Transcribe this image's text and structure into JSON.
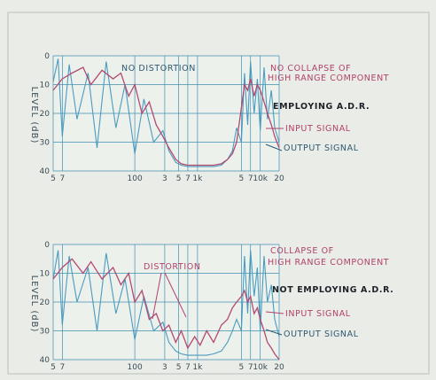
{
  "chart_data": [
    {
      "type": "line",
      "x_scale": "log",
      "xlim": [
        5,
        20000
      ],
      "ylim": [
        40,
        0
      ],
      "y_ticks": [
        0,
        10,
        20,
        30,
        40
      ],
      "x_ticks": [
        {
          "x": 5,
          "label": "5"
        },
        {
          "x": 7,
          "label": "7"
        },
        {
          "x": 100,
          "label": "100"
        },
        {
          "x": 300,
          "label": "3"
        },
        {
          "x": 500,
          "label": "5"
        },
        {
          "x": 700,
          "label": "7"
        },
        {
          "x": 1000,
          "label": "1k"
        },
        {
          "x": 5000,
          "label": "5"
        },
        {
          "x": 7000,
          "label": "7"
        },
        {
          "x": 10000,
          "label": "10k"
        },
        {
          "x": 20000,
          "label": "20"
        }
      ],
      "ylabel": "LEVEL (dB)",
      "grid": true,
      "annotations": {
        "distortion": "NO DISTORTION",
        "collapse_line1": "NO COLLAPSE OF",
        "collapse_line2": "HIGH RANGE COMPONENT",
        "mode": "EMPLOYING A.D.R.",
        "input": "INPUT SIGNAL",
        "output": "OUTPUT SIGNAL"
      },
      "colors": {
        "input": "#b24a72",
        "output": "#4a9bc0"
      },
      "series": [
        {
          "role": "output",
          "x": [
            5,
            6,
            7,
            9,
            12,
            18,
            25,
            35,
            50,
            70,
            100,
            140,
            200,
            280,
            350,
            450,
            550,
            700,
            900,
            1100,
            1400,
            1800,
            2400,
            3000,
            3600,
            4200,
            5000,
            5600,
            6300,
            7000,
            8000,
            9000,
            10000,
            11500,
            13000,
            15000,
            17000,
            20000
          ],
          "y": [
            9,
            1,
            28,
            3,
            22,
            6,
            32,
            2,
            25,
            10,
            34,
            15,
            30,
            26,
            33,
            37,
            38,
            38.5,
            38.5,
            38.5,
            38.5,
            38.5,
            38,
            36,
            33,
            25,
            30,
            6,
            24,
            2,
            20,
            8,
            26,
            4,
            22,
            12,
            25,
            30
          ]
        },
        {
          "role": "input",
          "x": [
            5,
            7,
            10,
            15,
            20,
            30,
            45,
            60,
            80,
            100,
            130,
            170,
            220,
            280,
            350,
            450,
            550,
            700,
            900,
            1100,
            1400,
            1800,
            2400,
            3000,
            3600,
            4200,
            5000,
            5600,
            6300,
            7000,
            8000,
            9000,
            10000,
            11500,
            13000,
            15000,
            17000,
            20000
          ],
          "y": [
            12,
            8,
            6,
            4,
            10,
            5,
            8,
            6,
            14,
            10,
            20,
            16,
            24,
            28,
            32,
            36,
            37.5,
            38,
            38,
            38,
            38,
            38,
            37.5,
            36,
            34,
            30,
            18,
            10,
            12,
            8,
            14,
            10,
            12,
            16,
            20,
            24,
            28,
            32
          ]
        }
      ]
    },
    {
      "type": "line",
      "x_scale": "log",
      "xlim": [
        5,
        20000
      ],
      "ylim": [
        40,
        0
      ],
      "y_ticks": [
        0,
        10,
        20,
        30,
        40
      ],
      "x_ticks": [
        {
          "x": 5,
          "label": "5"
        },
        {
          "x": 7,
          "label": "7"
        },
        {
          "x": 100,
          "label": "100"
        },
        {
          "x": 300,
          "label": "3"
        },
        {
          "x": 500,
          "label": "5"
        },
        {
          "x": 700,
          "label": "7"
        },
        {
          "x": 1000,
          "label": "1k"
        },
        {
          "x": 5000,
          "label": "5"
        },
        {
          "x": 7000,
          "label": "7"
        },
        {
          "x": 10000,
          "label": "10k"
        },
        {
          "x": 20000,
          "label": "20"
        }
      ],
      "ylabel": "LEVEL (dB)",
      "grid": true,
      "annotations": {
        "distortion": "DISTORTION",
        "collapse_line1": "COLLAPSE OF",
        "collapse_line2": "HIGH RANGE COMPONENT",
        "mode": "NOT EMPLOYING A.D.R.",
        "input": "INPUT SIGNAL",
        "output": "OUTPUT SIGNAL"
      },
      "colors": {
        "input": "#b24a72",
        "output": "#4a9bc0"
      },
      "series": [
        {
          "role": "output",
          "x": [
            5,
            6,
            7,
            9,
            12,
            18,
            25,
            35,
            50,
            70,
            100,
            140,
            200,
            280,
            350,
            450,
            550,
            700,
            900,
            1100,
            1400,
            1800,
            2400,
            3000,
            3600,
            4200,
            5000,
            5600,
            6300,
            7000,
            8000,
            9000,
            10000,
            11500,
            13000,
            15000,
            17000,
            20000
          ],
          "y": [
            12,
            2,
            28,
            4,
            20,
            8,
            30,
            3,
            24,
            12,
            33,
            18,
            30,
            27,
            34,
            37,
            38,
            38.5,
            38.5,
            38.5,
            38.5,
            38,
            37,
            34,
            30,
            26,
            30,
            4,
            24,
            2,
            18,
            8,
            30,
            4,
            20,
            14,
            26,
            32
          ]
        },
        {
          "role": "input",
          "x": [
            5,
            7,
            10,
            15,
            20,
            30,
            45,
            60,
            80,
            100,
            130,
            170,
            220,
            280,
            350,
            450,
            550,
            700,
            900,
            1100,
            1400,
            1800,
            2400,
            3000,
            3600,
            4200,
            5000,
            5600,
            6300,
            7000,
            8000,
            9000,
            10000,
            11500,
            13000,
            15000,
            17000,
            20000
          ],
          "y": [
            12,
            8,
            5,
            10,
            6,
            12,
            8,
            14,
            10,
            20,
            16,
            26,
            24,
            30,
            28,
            34,
            30,
            36,
            32,
            35,
            30,
            34,
            28,
            26,
            22,
            20,
            18,
            16,
            20,
            18,
            24,
            22,
            26,
            30,
            34,
            36,
            38,
            40
          ]
        }
      ]
    }
  ]
}
